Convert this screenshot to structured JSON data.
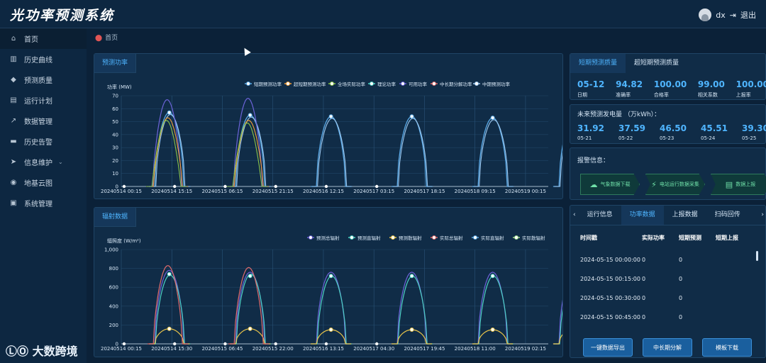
{
  "app": {
    "title": "光功率预测系统",
    "user": "dx",
    "logout": "退出"
  },
  "nav": [
    {
      "label": "首页",
      "icon": "home-icon",
      "glyph": "⌂",
      "active": true
    },
    {
      "label": "历史曲线",
      "icon": "chart-icon",
      "glyph": "▥"
    },
    {
      "label": "预测质量",
      "icon": "diamond-icon",
      "glyph": "◆"
    },
    {
      "label": "运行计划",
      "icon": "plan-icon",
      "glyph": "▤"
    },
    {
      "label": "数据管理",
      "icon": "trend-icon",
      "glyph": "↗"
    },
    {
      "label": "历史告警",
      "icon": "folder-icon",
      "glyph": "▬"
    },
    {
      "label": "信息维护",
      "icon": "send-icon",
      "glyph": "➤",
      "arrow": "⌄"
    },
    {
      "label": "地基云图",
      "icon": "eye-icon",
      "glyph": "◉"
    },
    {
      "label": "系统管理",
      "icon": "lock-icon",
      "glyph": "▣"
    }
  ],
  "breadcrumb": "首页",
  "powerPanel": {
    "tab": "预测功率"
  },
  "radPanel": {
    "tab": "辐射数据"
  },
  "quality": {
    "tabs": [
      "短期预测质量",
      "超短期预测质量"
    ],
    "stats": [
      {
        "value": "05-12",
        "label": "日期"
      },
      {
        "value": "94.82",
        "label": "准确率"
      },
      {
        "value": "100.00",
        "label": "合格率"
      },
      {
        "value": "99.00",
        "label": "相关系数"
      },
      {
        "value": "100.00",
        "label": "上报率"
      }
    ]
  },
  "forecast": {
    "title": "未来预测发电量 （万kWh）：",
    "items": [
      {
        "value": "31.92",
        "date": "05-21"
      },
      {
        "value": "37.59",
        "date": "05-22"
      },
      {
        "value": "46.50",
        "date": "05-23"
      },
      {
        "value": "45.51",
        "date": "05-24"
      },
      {
        "value": "39.30",
        "date": "05-25"
      }
    ]
  },
  "alarm": {
    "title": "报警信息：",
    "items": [
      {
        "label": "气象数据下载",
        "icon": "cloud-icon",
        "glyph": "☁"
      },
      {
        "label": "电站运行数据采集",
        "icon": "station-icon",
        "glyph": "⚡"
      },
      {
        "label": "数据上报",
        "icon": "upload-icon",
        "glyph": "▤"
      }
    ]
  },
  "dataPanel": {
    "tabs": [
      "运行信息",
      "功率数据",
      "上报数据",
      "扫码回传"
    ],
    "prev": "‹",
    "next": "›",
    "columns": [
      "时间戳",
      "实际功率",
      "短期预测",
      "短期上报"
    ],
    "rows": [
      [
        "2024-05-15 00:00:00",
        "0",
        "0",
        ""
      ],
      [
        "2024-05-15 00:15:00",
        "0",
        "0",
        ""
      ],
      [
        "2024-05-15 00:30:00",
        "0",
        "0",
        ""
      ],
      [
        "2024-05-15 00:45:00",
        "0",
        "0",
        ""
      ]
    ]
  },
  "buttons": {
    "export": "一键数据导出",
    "split": "中长期分解",
    "template": "模板下载"
  },
  "watermark": "大数跨境",
  "chart_data": [
    {
      "type": "line",
      "id": "power",
      "ylabel": "功率 (MW)",
      "ylim": [
        0,
        70
      ],
      "yticks": [
        0,
        10,
        20,
        30,
        40,
        50,
        60,
        70
      ],
      "xticks": [
        "20240514 00:15",
        "20240514 15:15",
        "20240515 06:15",
        "20240515 21:15",
        "20240516 12:15",
        "20240517 03:15",
        "20240517 18:15",
        "20240518 09:15",
        "20240519 00:15"
      ],
      "series": [
        {
          "name": "短期预测功率",
          "color": "#5aa9e6"
        },
        {
          "name": "超短期预测功率",
          "color": "#f29d38"
        },
        {
          "name": "全场实际功率",
          "color": "#8bc34a"
        },
        {
          "name": "理论功率",
          "color": "#4dd0c4"
        },
        {
          "name": "可用功率",
          "color": "#6c63d8"
        },
        {
          "name": "中长期分解功率",
          "color": "#e06b6b"
        },
        {
          "name": "中期预测功率",
          "color": "#9cc8f0"
        }
      ],
      "peaks": [
        {
          "day": 0,
          "peak": 57,
          "extra": 67
        },
        {
          "day": 1,
          "peak": 55,
          "extra": 68
        },
        {
          "day": 2,
          "peak": 54
        },
        {
          "day": 3,
          "peak": 54
        },
        {
          "day": 4,
          "peak": 53
        },
        {
          "day": 5,
          "peak": 53
        }
      ]
    },
    {
      "type": "line",
      "id": "radiation",
      "ylabel": "辐照度 (W/m²)",
      "ylim": [
        0,
        1000
      ],
      "yticks": [
        "0",
        "200",
        "400",
        "600",
        "800",
        "1,000"
      ],
      "xticks": [
        "20240514 00:15",
        "20240514 15:30",
        "20240515 06:45",
        "20240515 22:00",
        "20240516 13:15",
        "20240517 04:30",
        "20240517 19:45",
        "20240518 11:00",
        "20240519 02:15"
      ],
      "series": [
        {
          "name": "预测总辐射",
          "color": "#6c63d8"
        },
        {
          "name": "预测直辐射",
          "color": "#4dd0c4"
        },
        {
          "name": "预测散辐射",
          "color": "#e8c44a"
        },
        {
          "name": "实际总辐射",
          "color": "#e06b6b"
        },
        {
          "name": "实际直辐射",
          "color": "#5aa9e6"
        },
        {
          "name": "实际散辐射",
          "color": "#9ddc8a"
        }
      ],
      "peaks": [
        {
          "day": 0,
          "total": 780,
          "direct": 730,
          "diffuse": 160
        },
        {
          "day": 1,
          "total": 760,
          "direct": 740,
          "diffuse": 160
        },
        {
          "day": 2,
          "total": 760,
          "direct": 720,
          "diffuse": 150
        },
        {
          "day": 3,
          "total": 760,
          "direct": 720,
          "diffuse": 150
        },
        {
          "day": 4,
          "total": 760,
          "direct": 720,
          "diffuse": 150
        },
        {
          "day": 5,
          "total": 770,
          "direct": 720,
          "diffuse": 160
        }
      ]
    }
  ]
}
